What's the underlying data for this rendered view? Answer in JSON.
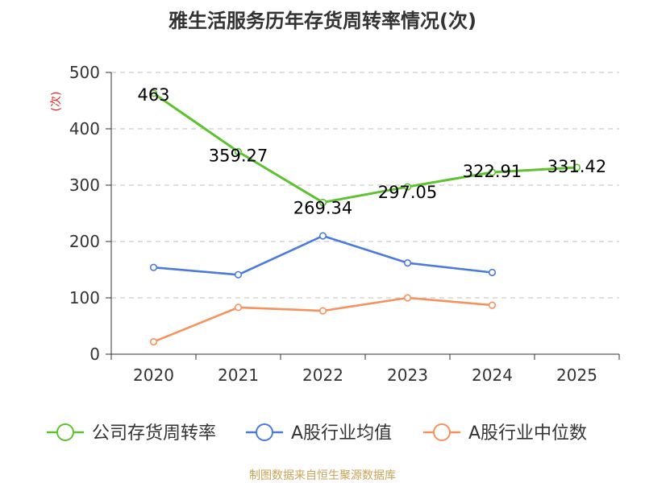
{
  "chart_data": {
    "type": "line",
    "title": "雅生活服务历年存货周转率情况(次)",
    "xlabel": "",
    "ylabel": "(次)",
    "categories": [
      "2020",
      "2021",
      "2022",
      "2023",
      "2024",
      "2025"
    ],
    "yticks": [
      "0",
      "100",
      "200",
      "300",
      "400",
      "500"
    ],
    "ylim": [
      0,
      500
    ],
    "grid": true,
    "legend_position": "bottom",
    "series": [
      {
        "name": "公司存货周转率",
        "color": "#5cc22e",
        "values": [
          463,
          359.27,
          269.34,
          297.05,
          322.91,
          331.42
        ],
        "labels": [
          "463",
          "359.27",
          "269.34",
          "297.05",
          "322.91",
          "331.42"
        ]
      },
      {
        "name": "A股行业均值",
        "color": "#4a7bdc",
        "values": [
          154,
          141,
          210,
          162,
          145,
          null
        ]
      },
      {
        "name": "A股行业中位数",
        "color": "#f5925e",
        "values": [
          22,
          83,
          77,
          100,
          87,
          null
        ]
      }
    ],
    "ylabel_color": "#e0261c",
    "source": "制图数据来自恒生聚源数据库",
    "source_color": "#c8a35a"
  }
}
